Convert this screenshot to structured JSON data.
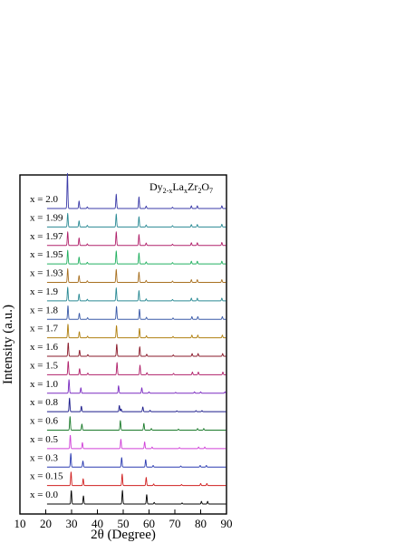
{
  "chart_data": {
    "type": "line",
    "title_parts": {
      "a": "Dy",
      "a_sub": "2-x",
      "b": "La",
      "b_sub": "x",
      "c": "Zr",
      "c_sub": "2",
      "d": "O",
      "d_sub": "7"
    },
    "xlabel": "2θ (Degree)",
    "ylabel": "Intensity (a.u.)",
    "xlim": [
      10,
      90
    ],
    "xticks": [
      "10",
      "20",
      "30",
      "40",
      "50",
      "60",
      "70",
      "80",
      "90"
    ],
    "legend_placement": "labels left of each stacked pattern",
    "grid": false,
    "y_ticks_labeled": false,
    "series": [
      {
        "label": "x = 2.0",
        "color": "#3a3aa8",
        "peaks": [
          [
            28.4,
            2.6
          ],
          [
            32.9,
            0.55
          ],
          [
            36.1,
            0.12
          ],
          [
            47.3,
            1.05
          ],
          [
            56.1,
            0.85
          ],
          [
            58.9,
            0.18
          ],
          [
            69.1,
            0.1
          ],
          [
            76.4,
            0.2
          ],
          [
            78.7,
            0.2
          ],
          [
            88.2,
            0.2
          ]
        ]
      },
      {
        "label": "x = 1.99",
        "color": "#2a8a94",
        "peaks": [
          [
            28.5,
            1.0
          ],
          [
            32.9,
            0.45
          ],
          [
            36.1,
            0.12
          ],
          [
            47.3,
            0.95
          ],
          [
            56.1,
            0.75
          ],
          [
            58.9,
            0.15
          ],
          [
            69.1,
            0.1
          ],
          [
            76.4,
            0.18
          ],
          [
            78.7,
            0.18
          ],
          [
            88.2,
            0.2
          ]
        ]
      },
      {
        "label": "x = 1.97",
        "color": "#b0206a",
        "peaks": [
          [
            28.5,
            1.0
          ],
          [
            32.9,
            0.55
          ],
          [
            36.1,
            0.12
          ],
          [
            47.3,
            1.0
          ],
          [
            56.1,
            0.8
          ],
          [
            58.9,
            0.18
          ],
          [
            69.1,
            0.1
          ],
          [
            76.4,
            0.2
          ],
          [
            78.7,
            0.2
          ],
          [
            88.2,
            0.22
          ]
        ]
      },
      {
        "label": "x = 1.95",
        "color": "#22b060",
        "peaks": [
          [
            28.5,
            1.0
          ],
          [
            32.9,
            0.5
          ],
          [
            36.1,
            0.12
          ],
          [
            47.3,
            0.95
          ],
          [
            56.1,
            0.8
          ],
          [
            58.9,
            0.15
          ],
          [
            69.1,
            0.1
          ],
          [
            76.4,
            0.2
          ],
          [
            78.7,
            0.2
          ],
          [
            88.2,
            0.2
          ]
        ]
      },
      {
        "label": "x = 1.93",
        "color": "#a87020",
        "peaks": [
          [
            28.5,
            1.0
          ],
          [
            32.9,
            0.5
          ],
          [
            36.1,
            0.12
          ],
          [
            47.3,
            0.95
          ],
          [
            56.1,
            0.75
          ],
          [
            58.9,
            0.15
          ],
          [
            69.1,
            0.1
          ],
          [
            76.4,
            0.2
          ],
          [
            78.7,
            0.2
          ],
          [
            88.2,
            0.2
          ]
        ]
      },
      {
        "label": "x = 1.9",
        "color": "#2a8a94",
        "peaks": [
          [
            28.5,
            1.0
          ],
          [
            32.9,
            0.5
          ],
          [
            36.1,
            0.12
          ],
          [
            47.3,
            0.95
          ],
          [
            56.1,
            0.75
          ],
          [
            58.9,
            0.15
          ],
          [
            69.1,
            0.1
          ],
          [
            76.4,
            0.2
          ],
          [
            78.7,
            0.2
          ],
          [
            88.2,
            0.2
          ]
        ]
      },
      {
        "label": "x = 1.8",
        "color": "#3a5aa8",
        "peaks": [
          [
            28.6,
            1.0
          ],
          [
            33.0,
            0.45
          ],
          [
            36.2,
            0.12
          ],
          [
            47.4,
            0.95
          ],
          [
            56.3,
            0.75
          ],
          [
            59.0,
            0.15
          ],
          [
            69.3,
            0.1
          ],
          [
            76.6,
            0.2
          ],
          [
            78.9,
            0.2
          ],
          [
            88.4,
            0.2
          ]
        ]
      },
      {
        "label": "x = 1.7",
        "color": "#b08010",
        "peaks": [
          [
            28.6,
            1.0
          ],
          [
            33.0,
            0.45
          ],
          [
            36.2,
            0.12
          ],
          [
            47.4,
            0.9
          ],
          [
            56.3,
            0.7
          ],
          [
            59.0,
            0.15
          ],
          [
            69.3,
            0.1
          ],
          [
            76.6,
            0.2
          ],
          [
            78.9,
            0.2
          ],
          [
            88.4,
            0.2
          ]
        ]
      },
      {
        "label": "x = 1.6",
        "color": "#8a1a2a",
        "peaks": [
          [
            28.7,
            1.0
          ],
          [
            33.1,
            0.45
          ],
          [
            36.3,
            0.12
          ],
          [
            47.5,
            0.9
          ],
          [
            56.4,
            0.7
          ],
          [
            59.1,
            0.15
          ],
          [
            69.4,
            0.1
          ],
          [
            76.7,
            0.2
          ],
          [
            79.0,
            0.2
          ],
          [
            88.5,
            0.2
          ]
        ]
      },
      {
        "label": "x = 1.5",
        "color": "#b0206a",
        "peaks": [
          [
            28.7,
            1.0
          ],
          [
            33.1,
            0.45
          ],
          [
            36.3,
            0.12
          ],
          [
            47.6,
            0.9
          ],
          [
            56.5,
            0.7
          ],
          [
            59.2,
            0.15
          ],
          [
            69.5,
            0.1
          ],
          [
            76.8,
            0.2
          ],
          [
            79.1,
            0.2
          ],
          [
            88.6,
            0.2
          ]
        ]
      },
      {
        "label": "x = 1.0",
        "color": "#7a2ac0",
        "peaks": [
          [
            29.0,
            1.0
          ],
          [
            33.6,
            0.4
          ],
          [
            48.2,
            0.55
          ],
          [
            57.2,
            0.4
          ],
          [
            60.0,
            0.1
          ],
          [
            70.3,
            0.06
          ],
          [
            77.6,
            0.1
          ],
          [
            80.0,
            0.1
          ],
          [
            89.4,
            0.1
          ]
        ]
      },
      {
        "label": "x = 0.8",
        "color": "#1a1a8a",
        "peaks": [
          [
            29.2,
            1.0
          ],
          [
            33.8,
            0.4
          ],
          [
            48.5,
            0.45
          ],
          [
            49.2,
            0.2
          ],
          [
            57.6,
            0.35
          ],
          [
            60.4,
            0.1
          ],
          [
            70.8,
            0.06
          ],
          [
            78.2,
            0.08
          ],
          [
            80.5,
            0.08
          ]
        ]
      },
      {
        "label": "x = 0.6",
        "color": "#1a7a2a",
        "peaks": [
          [
            29.4,
            1.0
          ],
          [
            34.0,
            0.45
          ],
          [
            48.9,
            0.7
          ],
          [
            58.0,
            0.5
          ],
          [
            60.9,
            0.12
          ],
          [
            71.4,
            0.08
          ],
          [
            78.8,
            0.12
          ],
          [
            81.2,
            0.12
          ]
        ]
      },
      {
        "label": "x = 0.5",
        "color": "#d040d8",
        "peaks": [
          [
            29.5,
            1.0
          ],
          [
            34.2,
            0.45
          ],
          [
            49.1,
            0.7
          ],
          [
            58.3,
            0.5
          ],
          [
            61.2,
            0.12
          ],
          [
            71.8,
            0.08
          ],
          [
            79.2,
            0.12
          ],
          [
            81.6,
            0.12
          ]
        ]
      },
      {
        "label": "x = 0.3",
        "color": "#2a3ab0",
        "peaks": [
          [
            29.7,
            1.0
          ],
          [
            34.4,
            0.45
          ],
          [
            49.4,
            0.7
          ],
          [
            58.7,
            0.55
          ],
          [
            61.6,
            0.12
          ],
          [
            72.3,
            0.08
          ],
          [
            79.8,
            0.12
          ],
          [
            82.2,
            0.12
          ]
        ]
      },
      {
        "label": "x = 0.15",
        "color": "#d02020",
        "peaks": [
          [
            29.8,
            1.0
          ],
          [
            34.5,
            0.5
          ],
          [
            49.6,
            0.85
          ],
          [
            58.9,
            0.6
          ],
          [
            61.8,
            0.12
          ],
          [
            72.6,
            0.08
          ],
          [
            80.0,
            0.15
          ],
          [
            82.4,
            0.15
          ]
        ]
      },
      {
        "label": "x = 0.0",
        "color": "#000000",
        "peaks": [
          [
            29.9,
            1.0
          ],
          [
            34.6,
            0.6
          ],
          [
            49.7,
            1.0
          ],
          [
            59.1,
            0.7
          ],
          [
            62.0,
            0.12
          ],
          [
            72.8,
            0.08
          ],
          [
            80.3,
            0.2
          ],
          [
            82.7,
            0.2
          ]
        ]
      }
    ]
  }
}
